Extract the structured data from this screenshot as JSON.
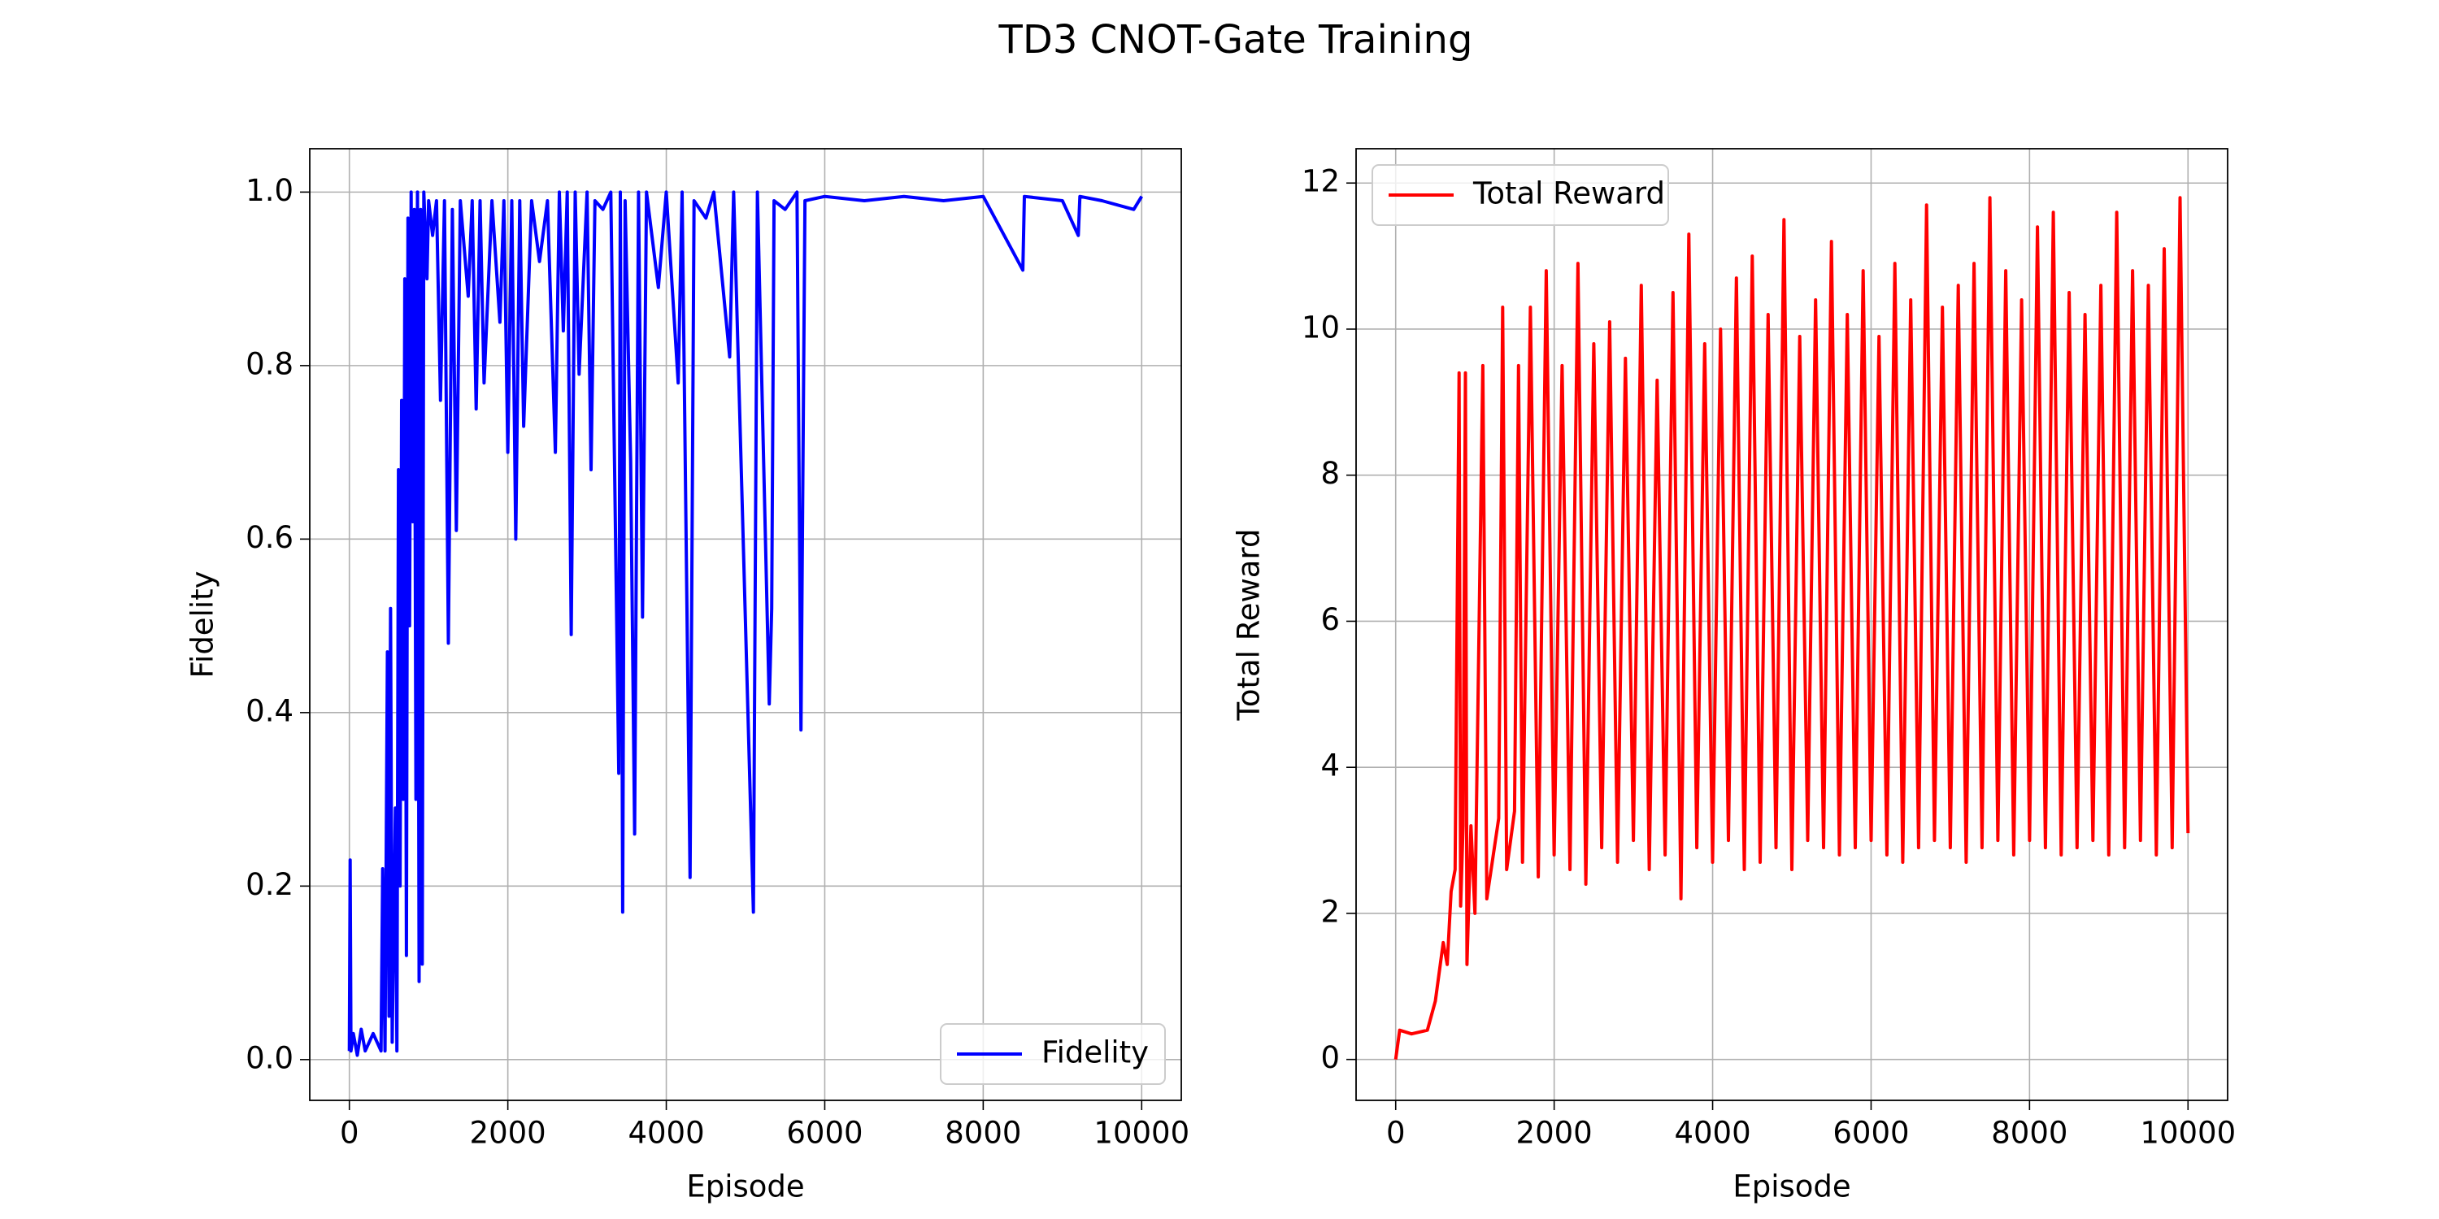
{
  "title": "TD3 CNOT-Gate Training",
  "chart_data": [
    {
      "type": "line",
      "xlabel": "Episode",
      "ylabel": "Fidelity",
      "xlim": [
        -500,
        10500
      ],
      "ylim": [
        -0.047,
        1.05
      ],
      "xticks": [
        0,
        2000,
        4000,
        6000,
        8000,
        10000
      ],
      "yticks": [
        {
          "value": 0,
          "label": "0.0"
        },
        {
          "value": 0.2,
          "label": "0.2"
        },
        {
          "value": 0.4,
          "label": "0.4"
        },
        {
          "value": 0.6,
          "label": "0.6"
        },
        {
          "value": 0.8,
          "label": "0.8"
        },
        {
          "value": 1,
          "label": "1.0"
        }
      ],
      "grid": true,
      "legend": "lower right",
      "x": [
        0,
        10,
        20,
        50,
        100,
        150,
        200,
        300,
        400,
        420,
        450,
        480,
        500,
        520,
        540,
        580,
        600,
        620,
        640,
        660,
        680,
        700,
        720,
        740,
        760,
        780,
        800,
        820,
        840,
        860,
        880,
        900,
        920,
        940,
        980,
        1000,
        1050,
        1100,
        1150,
        1200,
        1250,
        1300,
        1350,
        1400,
        1500,
        1550,
        1600,
        1650,
        1700,
        1800,
        1900,
        1950,
        2000,
        2050,
        2100,
        2150,
        2200,
        2300,
        2400,
        2500,
        2600,
        2650,
        2700,
        2750,
        2800,
        2850,
        2900,
        3000,
        3050,
        3100,
        3200,
        3300,
        3400,
        3420,
        3450,
        3480,
        3550,
        3600,
        3650,
        3700,
        3750,
        3900,
        4000,
        4150,
        4200,
        4300,
        4350,
        4500,
        4600,
        4800,
        4850,
        5100,
        5150,
        5300,
        5330,
        5360,
        5500,
        5650,
        5700,
        5750,
        6000,
        6500,
        7000,
        7500,
        8000,
        8500,
        8520,
        9000,
        9200,
        9220,
        9500,
        9900,
        10000
      ],
      "series": [
        {
          "name": "Fidelity",
          "color": "#0000ff",
          "values": [
            0.01,
            0.23,
            0.01,
            0.03,
            0.005,
            0.035,
            0.01,
            0.03,
            0.01,
            0.22,
            0.01,
            0.47,
            0.05,
            0.52,
            0.02,
            0.29,
            0.01,
            0.68,
            0.2,
            0.76,
            0.3,
            0.9,
            0.12,
            0.97,
            0.5,
            1.0,
            0.62,
            0.98,
            0.3,
            1.0,
            0.09,
            0.98,
            0.11,
            1.0,
            0.9,
            0.99,
            0.95,
            0.99,
            0.76,
            0.99,
            0.48,
            0.98,
            0.61,
            0.99,
            0.88,
            0.99,
            0.75,
            0.99,
            0.78,
            0.99,
            0.85,
            0.99,
            0.7,
            0.99,
            0.6,
            0.99,
            0.73,
            0.99,
            0.92,
            0.99,
            0.7,
            1.0,
            0.84,
            1.0,
            0.49,
            1.0,
            0.79,
            1.0,
            0.68,
            0.99,
            0.98,
            1.0,
            0.33,
            1.0,
            0.17,
            0.99,
            0.69,
            0.26,
            1.0,
            0.51,
            1.0,
            0.89,
            1.0,
            0.78,
            1.0,
            0.21,
            0.99,
            0.97,
            1.0,
            0.81,
            1.0,
            0.17,
            1.0,
            0.41,
            0.52,
            0.99,
            0.98,
            1.0,
            0.38,
            0.99,
            0.995,
            0.99,
            0.995,
            0.99,
            0.995,
            0.91,
            0.995,
            0.99,
            0.95,
            0.995,
            0.99,
            0.98,
            0.995
          ]
        }
      ]
    },
    {
      "type": "line",
      "xlabel": "Episode",
      "ylabel": "Total Reward",
      "xlim": [
        -500,
        10500
      ],
      "ylim": [
        -0.56,
        12.47
      ],
      "xticks": [
        0,
        2000,
        4000,
        6000,
        8000,
        10000
      ],
      "yticks": [
        0,
        2,
        4,
        6,
        8,
        10,
        12
      ],
      "grid": true,
      "legend": "upper left",
      "x": [
        0,
        50,
        200,
        400,
        500,
        600,
        650,
        700,
        750,
        800,
        820,
        850,
        880,
        900,
        950,
        1000,
        1100,
        1150,
        1300,
        1350,
        1400,
        1500,
        1550,
        1600,
        1700,
        1800,
        1900,
        2000,
        2100,
        2200,
        2300,
        2400,
        2500,
        2600,
        2700,
        2800,
        2900,
        3000,
        3100,
        3200,
        3300,
        3400,
        3500,
        3600,
        3700,
        3800,
        3900,
        4000,
        4100,
        4200,
        4300,
        4400,
        4500,
        4600,
        4700,
        4800,
        4900,
        5000,
        5100,
        5200,
        5300,
        5400,
        5500,
        5600,
        5700,
        5800,
        5900,
        6000,
        6100,
        6200,
        6300,
        6400,
        6500,
        6600,
        6700,
        6800,
        6900,
        7000,
        7100,
        7200,
        7300,
        7400,
        7500,
        7600,
        7700,
        7800,
        7900,
        8000,
        8100,
        8200,
        8300,
        8400,
        8500,
        8600,
        8700,
        8800,
        8900,
        9000,
        9100,
        9200,
        9300,
        9400,
        9500,
        9600,
        9700,
        9800,
        9900,
        10000
      ],
      "series": [
        {
          "name": "Total Reward",
          "color": "#ff0000",
          "values": [
            0,
            0.4,
            0.35,
            0.4,
            0.8,
            1.6,
            1.3,
            2.3,
            2.6,
            9.4,
            2.1,
            3.2,
            9.4,
            1.3,
            3.2,
            2.0,
            9.5,
            2.2,
            3.3,
            10.3,
            2.6,
            3.4,
            9.5,
            2.7,
            10.3,
            2.5,
            10.8,
            2.8,
            9.5,
            2.6,
            10.9,
            2.4,
            9.8,
            2.9,
            10.1,
            2.7,
            9.6,
            3.0,
            10.6,
            2.6,
            9.3,
            2.8,
            10.5,
            2.2,
            11.3,
            2.9,
            9.8,
            2.7,
            10.0,
            3.0,
            10.7,
            2.6,
            11.0,
            2.7,
            10.2,
            2.9,
            11.5,
            2.6,
            9.9,
            3.0,
            10.4,
            2.9,
            11.2,
            2.8,
            10.2,
            2.9,
            10.8,
            3.0,
            9.9,
            2.8,
            10.9,
            2.7,
            10.4,
            2.9,
            11.7,
            3.0,
            10.3,
            2.9,
            10.6,
            2.7,
            10.9,
            2.9,
            11.8,
            3.0,
            10.8,
            2.8,
            10.4,
            3.0,
            11.4,
            2.9,
            11.6,
            2.8,
            10.5,
            2.9,
            10.2,
            3.0,
            10.6,
            2.8,
            11.6,
            2.9,
            10.8,
            3.0,
            10.6,
            2.8,
            11.1,
            2.9,
            11.8,
            3.1
          ]
        }
      ]
    }
  ]
}
